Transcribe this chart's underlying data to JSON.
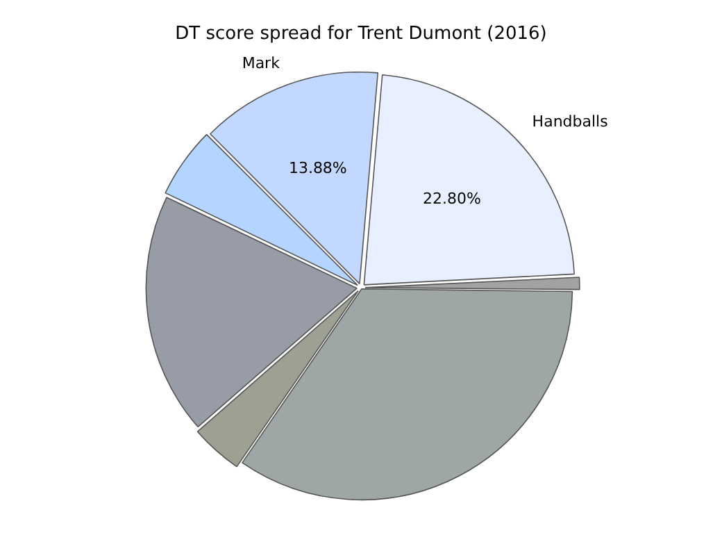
{
  "chart_data": {
    "type": "pie",
    "title": "DT score spread for Trent Dumont (2016)",
    "categories": [
      "Handballs",
      null,
      null,
      null,
      null,
      null,
      "Mark"
    ],
    "values": [
      22.8,
      1.0,
      34.4,
      4.0,
      18.5,
      5.42,
      13.88
    ],
    "colors": [
      "#e8f0ff",
      "#a2a2a2",
      "#9fa6a6",
      "#9da192",
      "#989ca6",
      "#b3d5ff",
      "#c3d8ff"
    ],
    "value_labels": [
      "22.80%",
      null,
      null,
      null,
      null,
      null,
      "13.88%"
    ],
    "legend": false
  }
}
